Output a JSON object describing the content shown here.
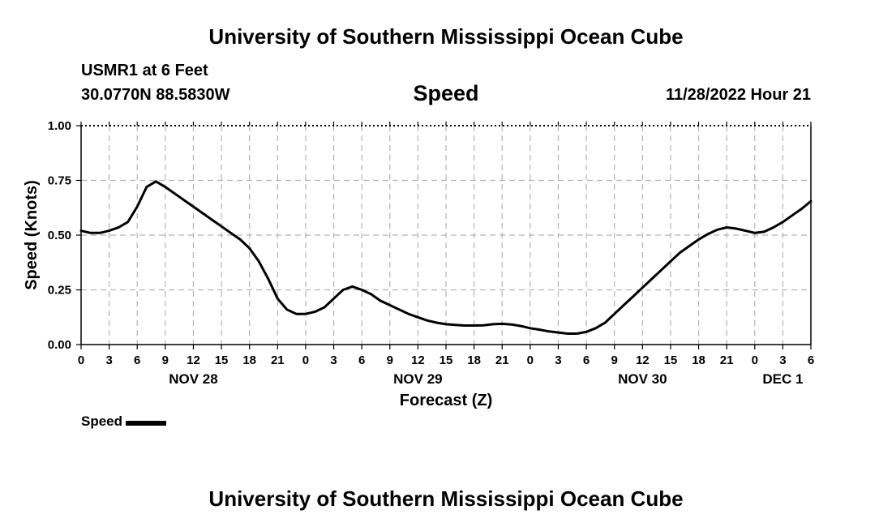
{
  "header": {
    "title": "University of Southern Mississippi Ocean Cube",
    "station": "USMR1 at 6 Feet",
    "coordinates": "30.0770N  88.5830W",
    "timestamp": "11/28/2022 Hour 21"
  },
  "footer": {
    "title": "University of Southern Mississippi Ocean Cube"
  },
  "chart_data": {
    "type": "line",
    "title": "Speed",
    "xlabel": "Forecast (Z)",
    "ylabel": "Speed (Knots)",
    "ylim": [
      0,
      1
    ],
    "yticks": [
      "0.00",
      "0.25",
      "0.50",
      "0.75",
      "1.00"
    ],
    "xlim_hours": [
      0,
      78
    ],
    "xtick_labels": [
      "0",
      "3",
      "6",
      "9",
      "12",
      "15",
      "18",
      "21",
      "0",
      "3",
      "6",
      "9",
      "12",
      "15",
      "18",
      "21",
      "0",
      "3",
      "6",
      "9",
      "12",
      "15",
      "18",
      "21",
      "0",
      "3",
      "6"
    ],
    "day_labels": [
      "NOV 28",
      "NOV 29",
      "NOV 30",
      "DEC 1"
    ],
    "grid": true,
    "legend_position": "bottom-left",
    "series": [
      {
        "name": "Speed",
        "color": "#000000",
        "x_hours": [
          0,
          1,
          2,
          3,
          4,
          5,
          6,
          7,
          8,
          9,
          10,
          11,
          12,
          13,
          14,
          15,
          16,
          17,
          18,
          19,
          20,
          21,
          22,
          23,
          24,
          25,
          26,
          27,
          28,
          29,
          30,
          31,
          32,
          33,
          34,
          35,
          36,
          37,
          38,
          39,
          40,
          41,
          42,
          43,
          44,
          45,
          46,
          47,
          48,
          49,
          50,
          51,
          52,
          53,
          54,
          55,
          56,
          57,
          58,
          59,
          60,
          61,
          62,
          63,
          64,
          65,
          66,
          67,
          68,
          69,
          70,
          71,
          72,
          73,
          74,
          75,
          76,
          77,
          78
        ],
        "values": [
          0.52,
          0.51,
          0.51,
          0.52,
          0.535,
          0.56,
          0.63,
          0.72,
          0.745,
          0.72,
          0.69,
          0.66,
          0.63,
          0.6,
          0.57,
          0.54,
          0.51,
          0.48,
          0.44,
          0.38,
          0.3,
          0.21,
          0.16,
          0.14,
          0.14,
          0.15,
          0.17,
          0.21,
          0.25,
          0.265,
          0.25,
          0.23,
          0.2,
          0.18,
          0.16,
          0.14,
          0.125,
          0.11,
          0.1,
          0.093,
          0.09,
          0.087,
          0.087,
          0.088,
          0.093,
          0.095,
          0.092,
          0.085,
          0.075,
          0.068,
          0.06,
          0.055,
          0.05,
          0.05,
          0.058,
          0.075,
          0.1,
          0.14,
          0.18,
          0.22,
          0.26,
          0.3,
          0.34,
          0.38,
          0.42,
          0.45,
          0.48,
          0.505,
          0.525,
          0.535,
          0.53,
          0.52,
          0.51,
          0.515,
          0.535,
          0.56,
          0.59,
          0.62,
          0.655
        ]
      }
    ]
  }
}
